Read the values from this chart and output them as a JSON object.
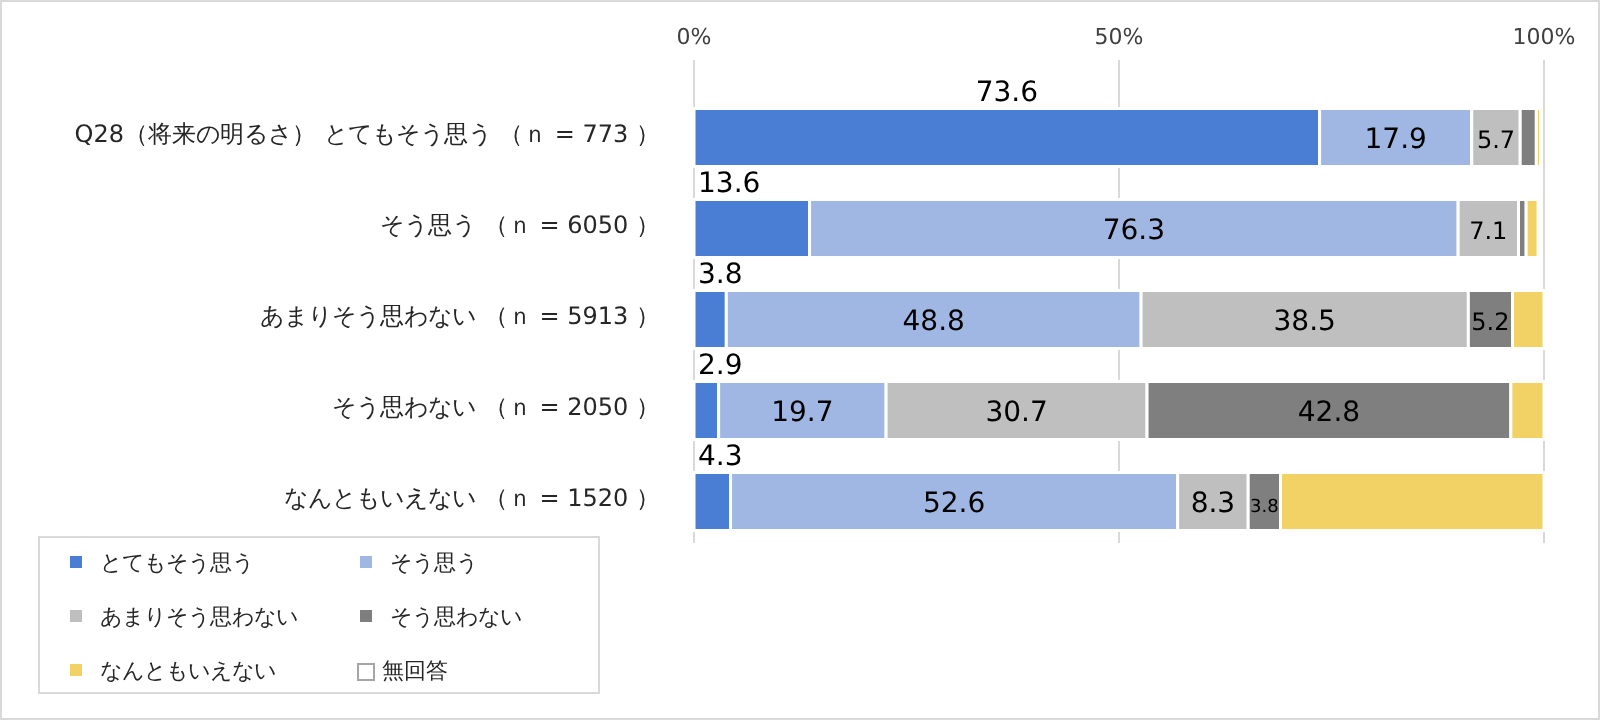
{
  "chart_data": {
    "type": "bar",
    "orientation": "horizontal",
    "stacked": true,
    "grid": "x",
    "legend": "bottom left",
    "categories": [
      "Q28（将来の明るさ） とてもそう思う （ｎ = 773 ）",
      "そう思う （ｎ = 6050 ）",
      "あまりそう思わない （ｎ = 5913 ）",
      "そう思わない （ｎ = 2050 ）",
      "なんともいえない （ｎ = 1520 ）"
    ],
    "xlim": [
      0,
      100
    ],
    "xticks": [
      {
        "value": 0,
        "label": "0%"
      },
      {
        "value": 50,
        "label": "50%"
      },
      {
        "value": 100,
        "label": "100%"
      }
    ],
    "series": [
      {
        "name": "とてもそう思う",
        "color": "#4a7dd4",
        "values": [
          73.6,
          13.6,
          3.8,
          2.9,
          4.3
        ],
        "value_labels": [
          "73.6",
          "13.6",
          "3.8",
          "2.9",
          "4.3"
        ]
      },
      {
        "name": "そう思う",
        "color": "#9fb7e2",
        "values": [
          17.9,
          76.3,
          48.8,
          19.7,
          52.6
        ],
        "value_labels": [
          "17.9",
          "76.3",
          "48.8",
          "19.7",
          "52.6"
        ]
      },
      {
        "name": "あまりそう思わない",
        "color": "#bfbfbf",
        "values": [
          5.7,
          7.1,
          38.5,
          30.7,
          8.3
        ],
        "value_labels": [
          "5.7",
          "7.1",
          "38.5",
          "30.7",
          "8.3"
        ]
      },
      {
        "name": "そう思わない",
        "color": "#7f7f7f",
        "values": [
          1.9,
          0.9,
          5.2,
          42.8,
          3.8
        ],
        "value_labels": [
          null,
          null,
          "5.2",
          "42.8",
          "3.8"
        ]
      },
      {
        "name": "なんともいえない",
        "color": "#f2d165",
        "values": [
          0.5,
          1.4,
          3.7,
          3.9,
          31.0
        ],
        "value_labels": [
          null,
          null,
          null,
          null,
          null
        ]
      },
      {
        "name": "無回答",
        "color": "#ffffff",
        "values": [
          0,
          0,
          0,
          0,
          0
        ],
        "value_labels": [
          null,
          null,
          null,
          null,
          null
        ]
      }
    ]
  }
}
